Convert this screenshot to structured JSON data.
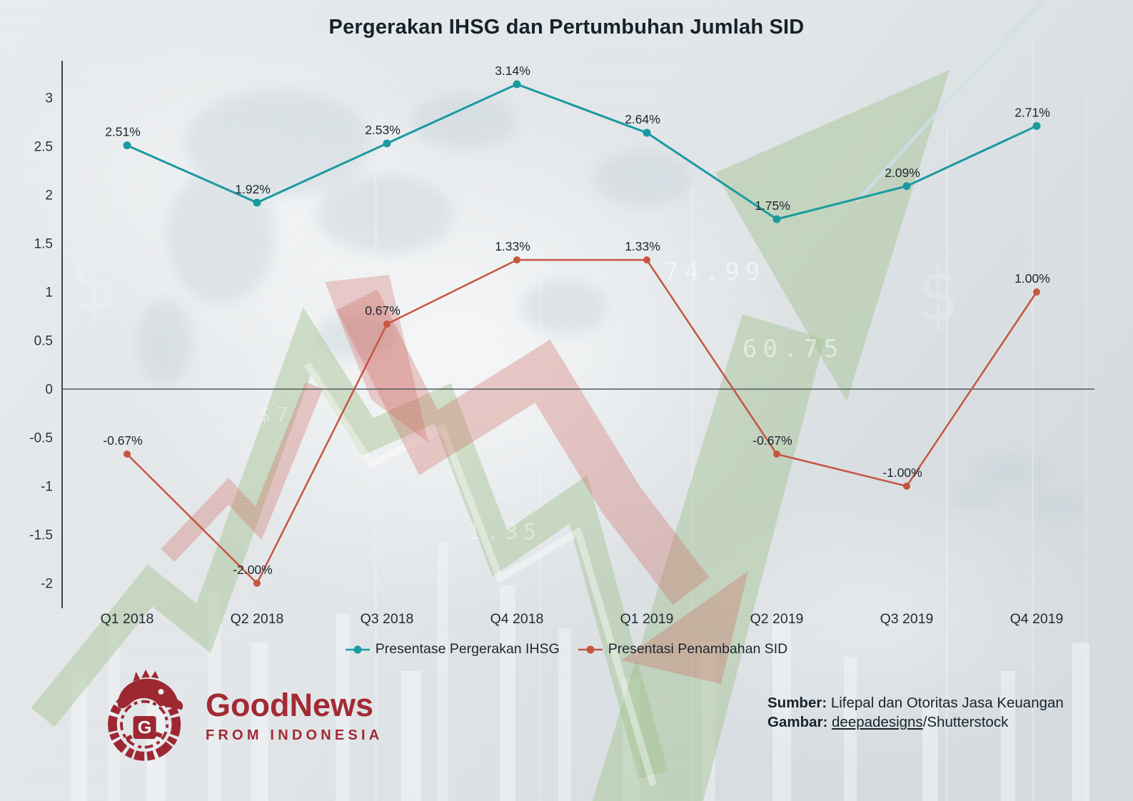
{
  "title": "Pergerakan IHSG dan Pertumbuhan Jumlah SID",
  "chart_data": {
    "type": "line",
    "title": "Pergerakan IHSG dan Pertumbuhan Jumlah SID",
    "categories": [
      "Q1 2018",
      "Q2 2018",
      "Q3 2018",
      "Q4 2018",
      "Q1 2019",
      "Q2 2019",
      "Q3 2019",
      "Q4 2019"
    ],
    "series": [
      {
        "name": "Presentase Pergerakan IHSG",
        "color": "#1a9aa0",
        "values": [
          2.51,
          1.92,
          2.53,
          3.14,
          2.64,
          1.75,
          2.09,
          2.71
        ],
        "labels": [
          "2.51%",
          "1.92%",
          "2.53%",
          "3.14%",
          "2.64%",
          "1.75%",
          "2.09%",
          "2.71%"
        ]
      },
      {
        "name": "Presentasi Penambahan SID",
        "color": "#c65540",
        "values": [
          -0.67,
          -2.0,
          0.67,
          1.33,
          1.33,
          -0.67,
          -1.0,
          1.0
        ],
        "labels": [
          "-0.67%",
          "-2.00%",
          "0.67%",
          "1.33%",
          "1.33%",
          "-0.67%",
          "-1.00%",
          "1.00%"
        ]
      }
    ],
    "y_ticks": [
      3,
      2.5,
      2,
      1.5,
      1,
      0.5,
      0,
      -0.5,
      -1,
      -1.5,
      -2
    ],
    "y_tick_labels": [
      "3",
      "2.5",
      "2",
      "1.5",
      "1",
      "0.5",
      "0",
      "-0.5",
      "-1",
      "-1.5",
      "-2"
    ],
    "ylim": [
      -2.4,
      3.4
    ],
    "grid": false,
    "xlabel": "",
    "ylabel": "",
    "legend_position": "bottom"
  },
  "legend": {
    "items": [
      {
        "label": "Presentase Pergerakan IHSG",
        "color": "#1a9aa0"
      },
      {
        "label": "Presentasi Penambahan SID",
        "color": "#c65540"
      }
    ]
  },
  "footer": {
    "sumber_label": "Sumber:",
    "sumber_text": " Lifepal dan Otoritas Jasa Keuangan",
    "gambar_label": "Gambar:",
    "gambar_space": " ",
    "gambar_link": "deepadesigns",
    "gambar_text": "/Shutterstock"
  },
  "logo": {
    "line1": "GoodNews",
    "line2": "FROM INDONESIA",
    "monogram": "G",
    "color": "#9e2832"
  },
  "background_glyphs": {
    "dollar_left": "$",
    "dollar_right": "$",
    "num1": "74.99",
    "num2": "60.75",
    "num3": "1.35",
    "num4": "$7"
  },
  "colors": {
    "ihsg_line": "#1a9aa0",
    "sid_line": "#c65540",
    "axis": "#3c454c",
    "zero_line": "#515a61",
    "title_text": "#16222a",
    "logo_red": "#a32a33"
  }
}
